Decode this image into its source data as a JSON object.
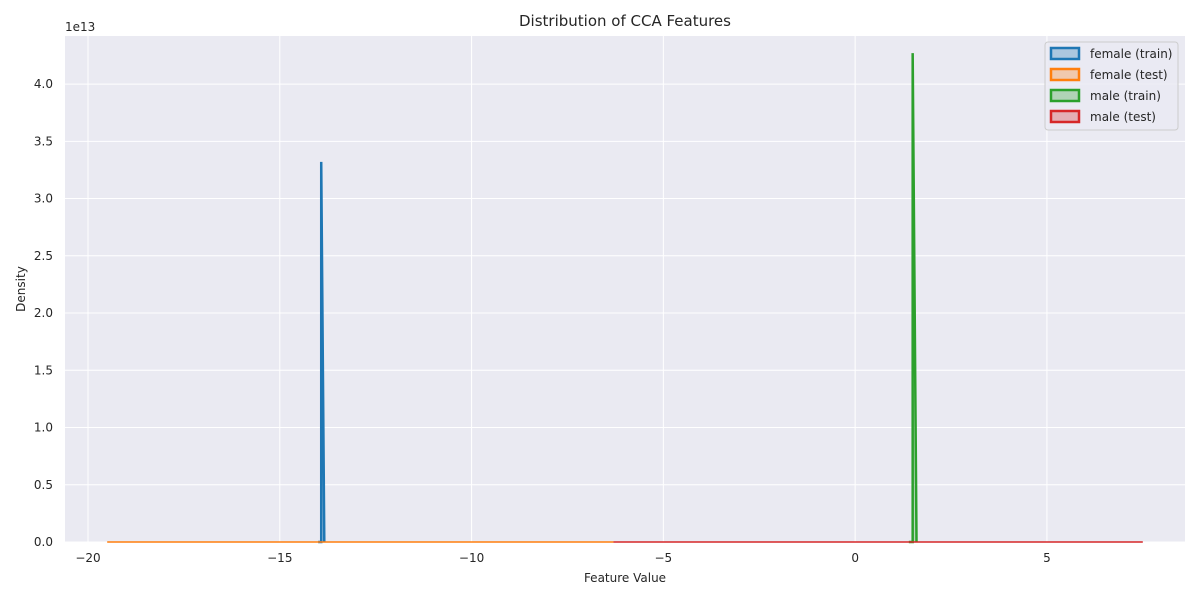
{
  "chart_data": {
    "type": "area",
    "title": "Distribution of CCA Features",
    "xlabel": "Feature Value",
    "ylabel": "Density",
    "y_scale_label": "1e13",
    "xlim": [
      -20.6,
      8.6
    ],
    "ylim": [
      0,
      4.42
    ],
    "x_ticks": [
      -20,
      -15,
      -10,
      -5,
      0,
      5
    ],
    "x_tick_labels": [
      "−20",
      "−15",
      "−10",
      "−5",
      "0",
      "5"
    ],
    "y_ticks": [
      0,
      0.5,
      1.0,
      1.5,
      2.0,
      2.5,
      3.0,
      3.5,
      4.0
    ],
    "y_tick_labels": [
      "0.0",
      "0.5",
      "1.0",
      "1.5",
      "2.0",
      "2.5",
      "3.0",
      "3.5",
      "4.0"
    ],
    "grid": true,
    "legend_position": "top-right",
    "series": [
      {
        "name": "female (train)",
        "color": "#1f77b4",
        "x": [
          -14.0,
          -13.92,
          -13.92,
          -13.84
        ],
        "y": [
          0,
          0,
          3.32,
          0
        ]
      },
      {
        "name": "female (test)",
        "color": "#ff7f0e",
        "x": [
          -19.5,
          -6.3
        ],
        "y": [
          0,
          0
        ]
      },
      {
        "name": "male (train)",
        "color": "#2ca02c",
        "x": [
          1.4,
          1.5,
          1.5,
          1.6
        ],
        "y": [
          0,
          0,
          4.27,
          0
        ]
      },
      {
        "name": "male (test)",
        "color": "#d62728",
        "x": [
          -6.3,
          7.5
        ],
        "y": [
          0,
          0
        ]
      }
    ]
  }
}
